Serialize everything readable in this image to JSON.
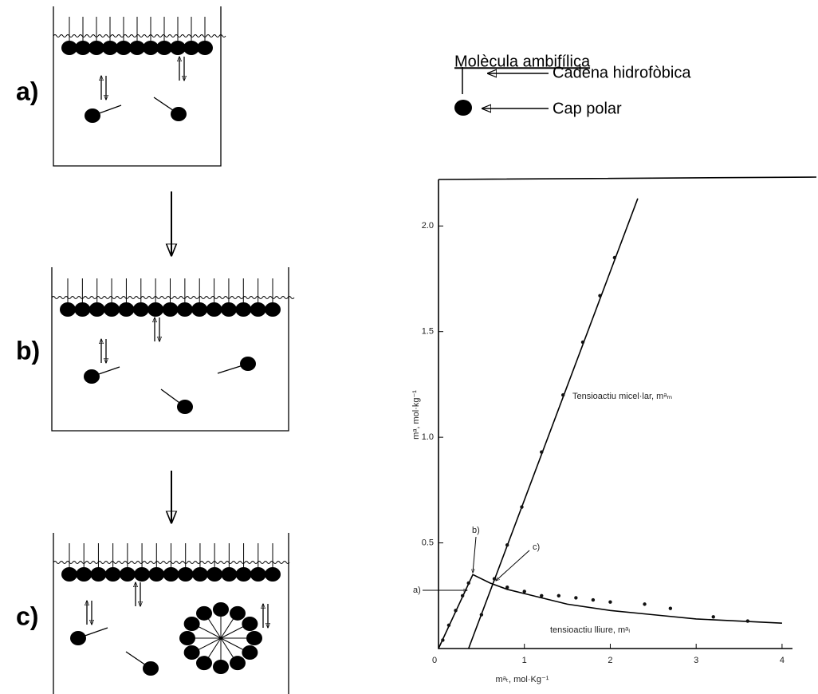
{
  "panels": [
    {
      "label": "a)"
    },
    {
      "label": "b)"
    },
    {
      "label": "c)"
    }
  ],
  "legend": {
    "title": "Molècula ambifílica",
    "items": [
      "Cadena hidrofòbica",
      "Cap polar"
    ]
  },
  "chart_data": {
    "type": "line",
    "xlabel": "mᵃₜ, mol·Kg⁻¹",
    "ylabel": "mᵃ, mol·kg⁻¹",
    "xlim": [
      0,
      4.4
    ],
    "ylim": [
      0,
      2.22
    ],
    "xticks": [
      0,
      1,
      2,
      3,
      4
    ],
    "yticks": [
      0.5,
      {
        "value": 1,
        "label": "1.0"
      },
      1.5,
      {
        "value": 2,
        "label": "2.0"
      }
    ],
    "annotations": [
      "a)",
      "b)",
      "c)"
    ],
    "series": [
      {
        "name": "Tensioactiu micel·lar, mᵃₘ",
        "color": "#111111",
        "x": [
          0.35,
          2.32
        ],
        "values": [
          0,
          2.13
        ],
        "markers": {
          "x": [
            0.5,
            0.65,
            0.8,
            0.97,
            1.2,
            1.45,
            1.68,
            1.88,
            2.05
          ],
          "values": [
            0.16,
            0.33,
            0.49,
            0.67,
            0.93,
            1.2,
            1.45,
            1.67,
            1.85
          ]
        }
      },
      {
        "name": "tensioactiu lliure, mᵃₗ",
        "color": "#111111",
        "x": [
          0,
          0.4,
          0.6,
          0.8,
          1,
          1.5,
          2,
          2.5,
          3,
          3.5,
          4
        ],
        "values": [
          0,
          0.35,
          0.31,
          0.28,
          0.26,
          0.21,
          0.18,
          0.16,
          0.14,
          0.13,
          0.12
        ],
        "markers": {
          "x": [
            0.05,
            0.12,
            0.2,
            0.28,
            0.35,
            0.8,
            1,
            1.2,
            1.4,
            1.6,
            1.8,
            2,
            2.4,
            2.7,
            3.2,
            3.6
          ],
          "values": [
            0.04,
            0.11,
            0.18,
            0.25,
            0.31,
            0.29,
            0.27,
            0.25,
            0.25,
            0.24,
            0.23,
            0.22,
            0.21,
            0.19,
            0.15,
            0.13
          ]
        }
      }
    ]
  }
}
